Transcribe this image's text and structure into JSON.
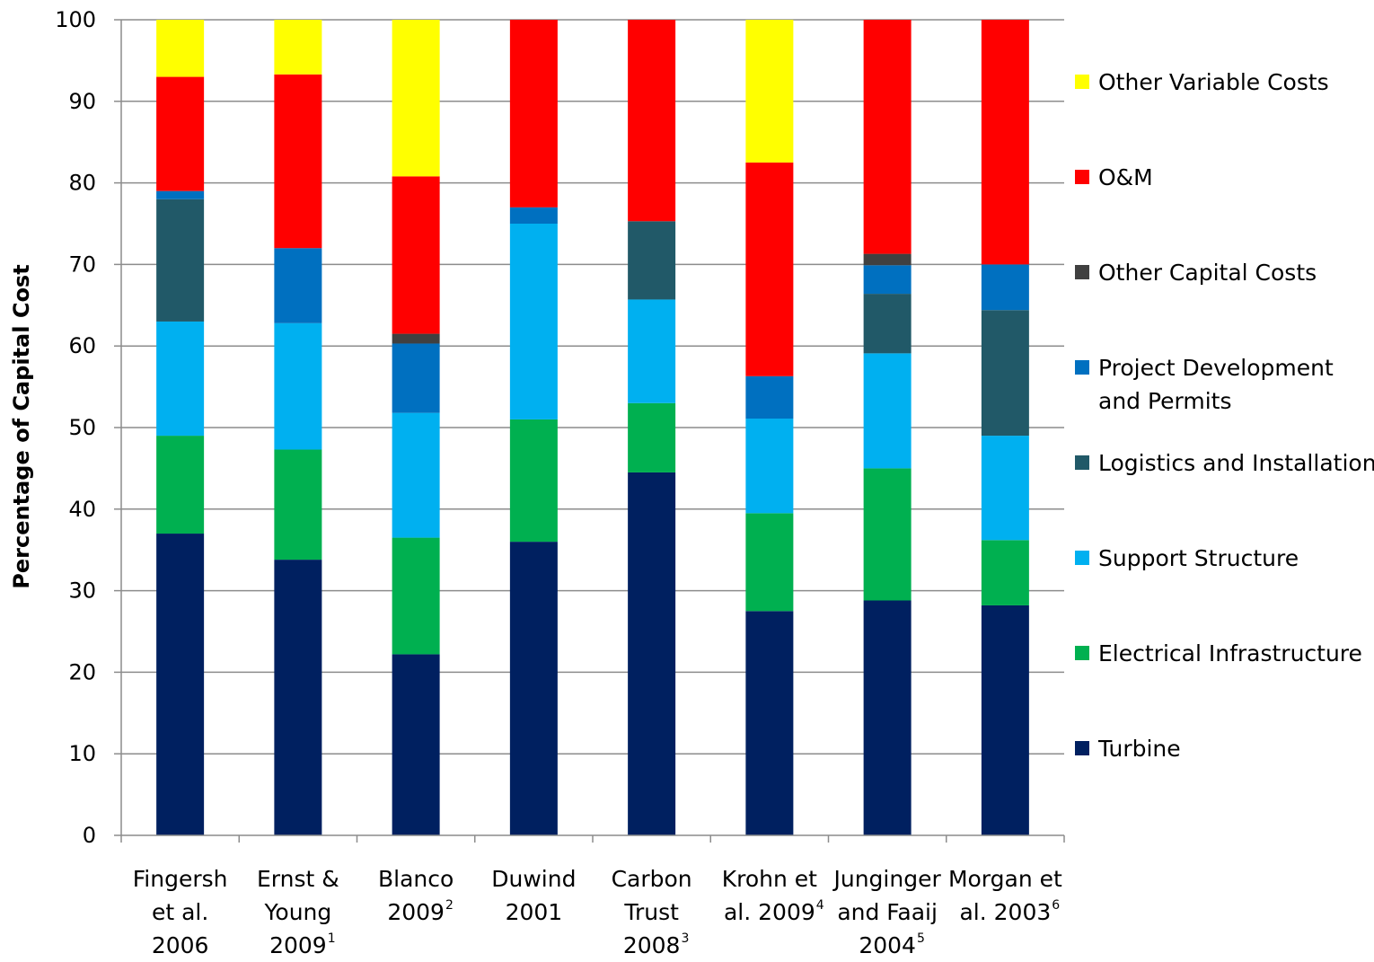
{
  "chart_data": {
    "type": "bar",
    "stacked": true,
    "ylabel": "Percentage of Capital Cost",
    "xlabel": "",
    "ylim": [
      0,
      100
    ],
    "yticks": [
      0,
      10,
      20,
      30,
      40,
      50,
      60,
      70,
      80,
      90,
      100
    ],
    "grid": true,
    "legend_position": "right",
    "categories": [
      {
        "lines": [
          "Fingersh",
          "et al.",
          "2006"
        ],
        "sup": ""
      },
      {
        "lines": [
          "Ernst &",
          "Young",
          "2009"
        ],
        "sup": "1"
      },
      {
        "lines": [
          "Blanco",
          "2009"
        ],
        "sup": "2"
      },
      {
        "lines": [
          "Duwind",
          "2001"
        ],
        "sup": ""
      },
      {
        "lines": [
          "Carbon",
          "Trust",
          "2008"
        ],
        "sup": "3"
      },
      {
        "lines": [
          "Krohn et",
          "al. 2009"
        ],
        "sup": "4"
      },
      {
        "lines": [
          "Junginger",
          "and Faaij",
          "2004"
        ],
        "sup": "5"
      },
      {
        "lines": [
          "Morgan et",
          "al. 2003"
        ],
        "sup": "6"
      }
    ],
    "series": [
      {
        "name": "Turbine",
        "color": "#002060",
        "values": [
          37,
          33.8,
          22.2,
          36,
          44.5,
          27.5,
          28.8,
          28.2
        ]
      },
      {
        "name": "Electrical Infrastructure",
        "color": "#00B050",
        "values": [
          12,
          13.5,
          14.3,
          15,
          8.5,
          12,
          16.2,
          8
        ]
      },
      {
        "name": "Support Structure",
        "color": "#00B0F0",
        "values": [
          14,
          15.5,
          15.3,
          24,
          12.7,
          11.6,
          14.1,
          12.8
        ]
      },
      {
        "name": "Logistics and Installation",
        "color": "#215968",
        "values": [
          15,
          0,
          0,
          0,
          9.6,
          0,
          7.3,
          15.4
        ]
      },
      {
        "name": "Project Development and Permits",
        "color": "#0070C0",
        "values": [
          1,
          9.2,
          8.5,
          2,
          0,
          5.2,
          3.5,
          5.6
        ]
      },
      {
        "name": "Other Capital Costs",
        "color": "#404040",
        "values": [
          0,
          0,
          1.2,
          0,
          0,
          0,
          1.4,
          0
        ]
      },
      {
        "name": "O&M",
        "color": "#FF0000",
        "values": [
          14,
          21.3,
          19.3,
          23,
          24.7,
          26.2,
          28.7,
          30
        ]
      },
      {
        "name": "Other Variable Costs",
        "color": "#FFFF00",
        "values": [
          7,
          6.7,
          19.2,
          0,
          0,
          17.5,
          0,
          0
        ]
      }
    ],
    "legend": [
      {
        "lines": [
          "Other Variable Costs"
        ],
        "color": "#FFFF00"
      },
      {
        "lines": [
          "O&M"
        ],
        "color": "#FF0000"
      },
      {
        "lines": [
          "Other Capital Costs"
        ],
        "color": "#404040"
      },
      {
        "lines": [
          "Project Development",
          "and Permits"
        ],
        "color": "#0070C0"
      },
      {
        "lines": [
          "Logistics and Installation"
        ],
        "color": "#215968"
      },
      {
        "lines": [
          "Support Structure"
        ],
        "color": "#00B0F0"
      },
      {
        "lines": [
          "Electrical Infrastructure"
        ],
        "color": "#00B050"
      },
      {
        "lines": [
          "Turbine"
        ],
        "color": "#002060"
      }
    ]
  }
}
